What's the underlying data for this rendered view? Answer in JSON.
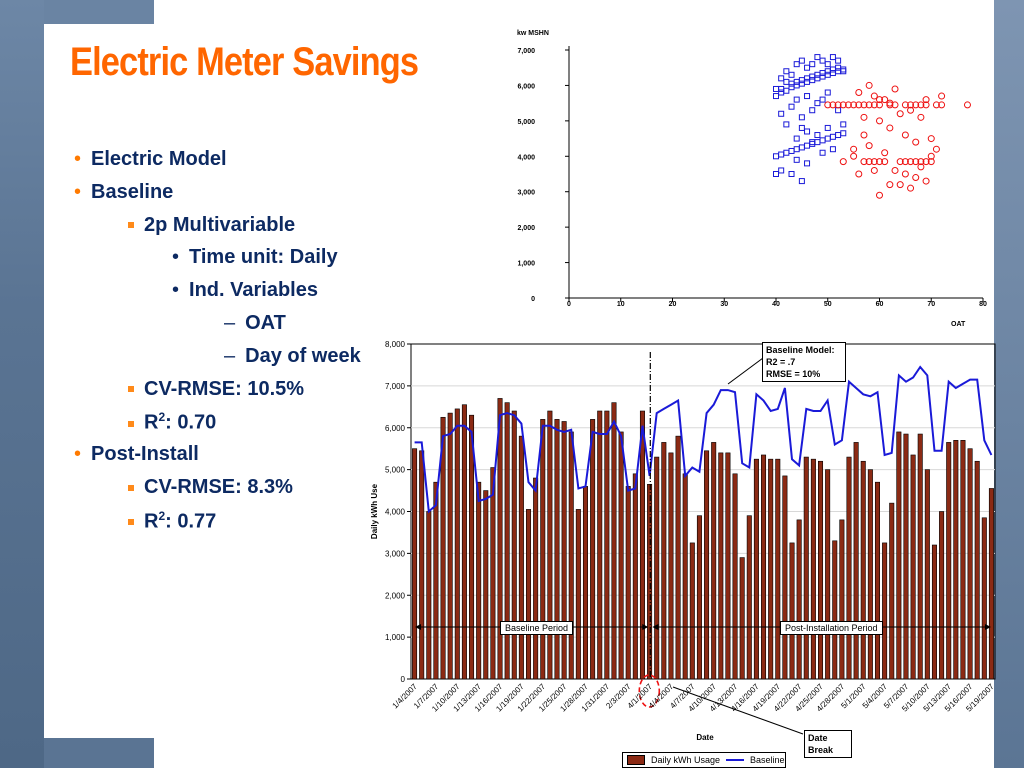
{
  "slide": {
    "title": "Electric Meter Savings",
    "bullets": [
      {
        "level": 1,
        "text": "Electric Model"
      },
      {
        "level": 1,
        "text": "Baseline"
      },
      {
        "level": 2,
        "text": "2p Multivariable"
      },
      {
        "level": 3,
        "text": "Time unit: Daily"
      },
      {
        "level": 3,
        "text": "Ind. Variables"
      },
      {
        "level": 4,
        "text": "OAT"
      },
      {
        "level": 4,
        "text": "Day of week"
      },
      {
        "level": 2,
        "text": "CV-RMSE: 10.5%"
      },
      {
        "level": 2,
        "text": "R",
        "sup": "2",
        "tail": ": 0.70"
      },
      {
        "level": 1,
        "text": "Post-Install"
      },
      {
        "level": 2,
        "text": "CV-RMSE: 8.3%"
      },
      {
        "level": 2,
        "text": "R",
        "sup": "2",
        "tail": ": 0.77"
      }
    ]
  },
  "colors": {
    "title": "#ff6600",
    "bullet_text": "#0d2a62",
    "bar_fill": "#8b2a14",
    "baseline_line": "#1a1ad8",
    "scatter_blue": "#1a1ad8",
    "scatter_red": "#ee1111"
  },
  "chart_data": [
    {
      "type": "scatter",
      "ylabel": "kw MSHN",
      "xlabel": "OAT",
      "xlim": [
        0,
        80
      ],
      "ylim": [
        0,
        7000
      ],
      "x_ticks": [
        "0",
        "10",
        "20",
        "30",
        "40",
        "50",
        "60",
        "70",
        "80"
      ],
      "y_ticks": [
        "0",
        "1,000",
        "2,000",
        "3,000",
        "4,000",
        "5,000",
        "6,000",
        "7,000"
      ],
      "grid": false,
      "series": [
        {
          "marker": "square",
          "color": "#1a1ad8",
          "points": [
            [
              40,
              5700
            ],
            [
              41,
              5800
            ],
            [
              41,
              5900
            ],
            [
              42,
              5850
            ],
            [
              43,
              5950
            ],
            [
              43,
              6050
            ],
            [
              44,
              6000
            ],
            [
              44,
              6100
            ],
            [
              45,
              6050
            ],
            [
              45,
              6150
            ],
            [
              46,
              6100
            ],
            [
              46,
              6200
            ],
            [
              47,
              6150
            ],
            [
              47,
              6250
            ],
            [
              48,
              6200
            ],
            [
              48,
              6300
            ],
            [
              49,
              6250
            ],
            [
              49,
              6350
            ],
            [
              50,
              6300
            ],
            [
              50,
              6400
            ],
            [
              51,
              6350
            ],
            [
              51,
              6450
            ],
            [
              52,
              6400
            ],
            [
              52,
              6500
            ],
            [
              53,
              6450
            ],
            [
              53,
              6400
            ],
            [
              40,
              5900
            ],
            [
              41,
              6200
            ],
            [
              42,
              6400
            ],
            [
              43,
              6300
            ],
            [
              44,
              6600
            ],
            [
              45,
              6700
            ],
            [
              46,
              6500
            ],
            [
              47,
              6600
            ],
            [
              48,
              6800
            ],
            [
              49,
              6700
            ],
            [
              50,
              6600
            ],
            [
              51,
              6800
            ],
            [
              52,
              6700
            ],
            [
              42,
              6100
            ],
            [
              44,
              5600
            ],
            [
              46,
              5700
            ],
            [
              48,
              5500
            ],
            [
              50,
              5800
            ],
            [
              41,
              5200
            ],
            [
              43,
              5400
            ],
            [
              45,
              5100
            ],
            [
              47,
              5300
            ],
            [
              52,
              5300
            ],
            [
              49,
              5600
            ],
            [
              40,
              4000
            ],
            [
              41,
              4050
            ],
            [
              42,
              4100
            ],
            [
              43,
              4150
            ],
            [
              44,
              4200
            ],
            [
              45,
              4250
            ],
            [
              46,
              4300
            ],
            [
              47,
              4350
            ],
            [
              48,
              4400
            ],
            [
              49,
              4450
            ],
            [
              50,
              4500
            ],
            [
              51,
              4550
            ],
            [
              52,
              4600
            ],
            [
              53,
              4650
            ],
            [
              44,
              4500
            ],
            [
              46,
              4700
            ],
            [
              48,
              4600
            ],
            [
              50,
              4800
            ],
            [
              42,
              4900
            ],
            [
              45,
              4800
            ],
            [
              47,
              4400
            ],
            [
              51,
              4200
            ],
            [
              53,
              4900
            ],
            [
              49,
              4100
            ],
            [
              40,
              3500
            ],
            [
              41,
              3600
            ],
            [
              43,
              3500
            ],
            [
              45,
              3300
            ],
            [
              44,
              3900
            ],
            [
              46,
              3800
            ]
          ]
        },
        {
          "marker": "circle",
          "color": "#ee1111",
          "points": [
            [
              50,
              5450
            ],
            [
              51,
              5450
            ],
            [
              52,
              5450
            ],
            [
              53,
              5450
            ],
            [
              54,
              5450
            ],
            [
              55,
              5450
            ],
            [
              56,
              5450
            ],
            [
              57,
              5450
            ],
            [
              58,
              5450
            ],
            [
              59,
              5450
            ],
            [
              60,
              5450
            ],
            [
              62,
              5450
            ],
            [
              63,
              5450
            ],
            [
              65,
              5450
            ],
            [
              66,
              5450
            ],
            [
              67,
              5450
            ],
            [
              68,
              5450
            ],
            [
              69,
              5450
            ],
            [
              71,
              5450
            ],
            [
              72,
              5450
            ],
            [
              77,
              5450
            ],
            [
              53,
              3850
            ],
            [
              57,
              3850
            ],
            [
              58,
              3850
            ],
            [
              59,
              3850
            ],
            [
              60,
              3850
            ],
            [
              61,
              3850
            ],
            [
              64,
              3850
            ],
            [
              65,
              3850
            ],
            [
              66,
              3850
            ],
            [
              67,
              3850
            ],
            [
              68,
              3850
            ],
            [
              69,
              3850
            ],
            [
              70,
              3850
            ],
            [
              56,
              5800
            ],
            [
              58,
              6000
            ],
            [
              59,
              5700
            ],
            [
              61,
              5600
            ],
            [
              63,
              5900
            ],
            [
              64,
              5200
            ],
            [
              66,
              5300
            ],
            [
              68,
              5100
            ],
            [
              69,
              5600
            ],
            [
              72,
              5700
            ],
            [
              57,
              5100
            ],
            [
              60,
              5000
            ],
            [
              62,
              4800
            ],
            [
              65,
              4600
            ],
            [
              67,
              4400
            ],
            [
              70,
              4500
            ],
            [
              55,
              4200
            ],
            [
              58,
              4300
            ],
            [
              61,
              4100
            ],
            [
              63,
              3600
            ],
            [
              65,
              3500
            ],
            [
              67,
              3400
            ],
            [
              69,
              3300
            ],
            [
              56,
              3500
            ],
            [
              59,
              3600
            ],
            [
              62,
              3200
            ],
            [
              60,
              2900
            ],
            [
              64,
              3200
            ],
            [
              66,
              3100
            ],
            [
              68,
              3700
            ],
            [
              70,
              4000
            ],
            [
              71,
              4200
            ],
            [
              55,
              4000
            ],
            [
              57,
              4600
            ],
            [
              60,
              5600
            ],
            [
              62,
              5500
            ]
          ]
        }
      ]
    },
    {
      "type": "bar",
      "xlabel": "Date",
      "ylabel": "Daily kWh Use",
      "ylim": [
        0,
        8000
      ],
      "y_ticks": [
        "0",
        "1,000",
        "2,000",
        "3,000",
        "4,000",
        "5,000",
        "6,000",
        "7,000",
        "8,000"
      ],
      "x_tick_labels": [
        "1/4/2007",
        "1/7/2007",
        "1/10/2007",
        "1/13/2007",
        "1/16/2007",
        "1/19/2007",
        "1/22/2007",
        "1/25/2007",
        "1/28/2007",
        "1/31/2007",
        "2/3/2007",
        "4/1/2007",
        "4/4/2007",
        "4/7/2007",
        "4/10/2007",
        "4/13/2007",
        "4/16/2007",
        "4/19/2007",
        "4/22/2007",
        "4/25/2007",
        "4/28/2007",
        "5/1/2007",
        "5/4/2007",
        "5/7/2007",
        "5/10/2007",
        "5/13/2007",
        "5/16/2007",
        "5/19/2007"
      ],
      "legend": [
        "Daily kWh Usage",
        "Baseline"
      ],
      "legend_position": "bottom",
      "series": [
        {
          "name": "Daily kWh Usage",
          "kind": "bar",
          "values": [
            5500,
            5450,
            4000,
            4700,
            6250,
            6350,
            6450,
            6550,
            6300,
            4700,
            4500,
            5050,
            6700,
            6600,
            6400,
            5800,
            4050,
            4800,
            6200,
            6400,
            6200,
            6150,
            5900,
            4050,
            4600,
            6200,
            6400,
            6400,
            6600,
            5900,
            4600,
            4900,
            6400,
            4650,
            5300,
            5650,
            5400,
            5800,
            4900,
            3250,
            3900,
            5450,
            5650,
            5400,
            5400,
            4900,
            2900,
            3900,
            5250,
            5350,
            5250,
            5250,
            4850,
            3250,
            3800,
            5300,
            5250,
            5200,
            5000,
            3300,
            3800,
            5300,
            5650,
            5200,
            5000,
            4700,
            3250,
            4200,
            5900,
            5850,
            5350,
            5850,
            5000,
            3200,
            4000,
            5650,
            5700,
            5700,
            5500,
            5200,
            3850,
            4550
          ]
        },
        {
          "name": "Baseline",
          "kind": "line",
          "values": [
            5650,
            5650,
            4000,
            4150,
            5800,
            5850,
            6050,
            6050,
            5900,
            4250,
            4300,
            4400,
            6300,
            6350,
            6300,
            6100,
            4700,
            4500,
            6050,
            6050,
            5950,
            5900,
            5950,
            4550,
            4600,
            5900,
            5850,
            5850,
            6150,
            5800,
            4500,
            4550,
            6050,
            4850,
            6350,
            6450,
            6550,
            6650,
            4850,
            5050,
            4950,
            6350,
            6550,
            6900,
            6900,
            6850,
            5150,
            5050,
            6800,
            6650,
            6400,
            6450,
            6950,
            5250,
            5100,
            6450,
            6400,
            6400,
            6650,
            5600,
            5700,
            7100,
            6950,
            6800,
            6750,
            6850,
            5350,
            5400,
            7250,
            7100,
            7200,
            7450,
            7250,
            5450,
            5450,
            7100,
            6950,
            7050,
            7150,
            7150,
            5700,
            5350
          ]
        }
      ],
      "annotations": {
        "baseline_model": [
          "Baseline Model:",
          "R2 = .7",
          "RMSE  = 10%"
        ],
        "baseline_period": "Baseline Period",
        "post_period": "Post-Installation Period",
        "date_break": [
          "Date",
          "Break"
        ]
      }
    }
  ]
}
